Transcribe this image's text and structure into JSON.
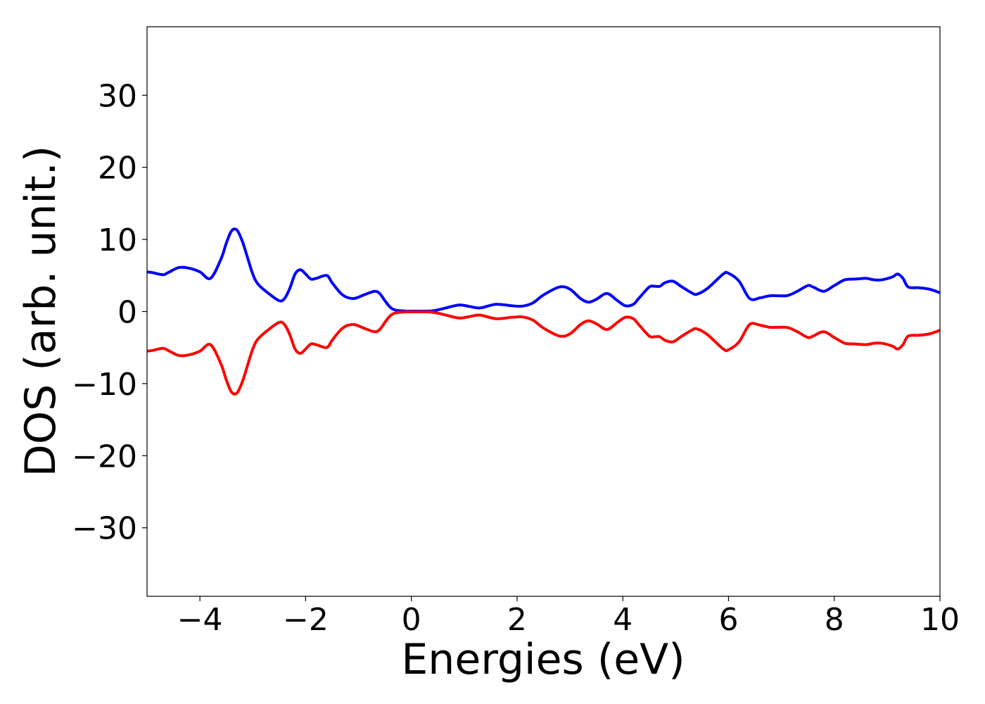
{
  "chart_data": {
    "type": "line",
    "title": "",
    "xlabel": "Energies (eV)",
    "ylabel": "DOS (arb. unit.)",
    "xlim": [
      -5,
      10
    ],
    "ylim": [
      -39.5,
      39.5
    ],
    "grid": false,
    "legend": "none",
    "x_ticks": [
      -4,
      -2,
      0,
      2,
      4,
      6,
      8,
      10
    ],
    "x_tick_labels": [
      "−4",
      "−2",
      "0",
      "2",
      "4",
      "6",
      "8",
      "10"
    ],
    "y_ticks": [
      30,
      20,
      10,
      0,
      -10,
      -20,
      -30
    ],
    "y_tick_labels": [
      "30",
      "20",
      "10",
      "0",
      "−10",
      "−20",
      "−30"
    ],
    "series": [
      {
        "color": "#0000ff",
        "x": [
          -5,
          -4.9,
          -4.7,
          -4.6,
          -4.4,
          -4.2,
          -4.0,
          -3.8,
          -3.6,
          -3.5,
          -3.4,
          -3.3,
          -3.2,
          -3.1,
          -3.0,
          -2.9,
          -2.7,
          -2.5,
          -2.4,
          -2.3,
          -2.2,
          -2.1,
          -2.0,
          -1.9,
          -1.8,
          -1.6,
          -1.5,
          -1.3,
          -1.1,
          -0.9,
          -0.7,
          -0.6,
          -0.5,
          -0.4,
          -0.3,
          -0.1,
          0,
          0.2,
          0.4,
          0.6,
          0.9,
          1.1,
          1.3,
          1.6,
          1.9,
          2.1,
          2.3,
          2.5,
          2.8,
          3.0,
          3.2,
          3.35,
          3.5,
          3.7,
          3.9,
          4.05,
          4.2,
          4.3,
          4.5,
          4.6,
          4.7,
          4.8,
          4.95,
          5.1,
          5.3,
          5.4,
          5.6,
          5.9,
          6.0,
          6.2,
          6.4,
          6.6,
          6.8,
          7.1,
          7.3,
          7.5,
          7.6,
          7.8,
          8.0,
          8.2,
          8.4,
          8.6,
          8.75,
          8.9,
          9.1,
          9.2,
          9.3,
          9.4,
          9.6,
          9.8,
          10
        ],
        "values": [
          5.5,
          5.4,
          5.1,
          5.4,
          6.1,
          6.0,
          5.5,
          4.6,
          7.3,
          9.5,
          11.2,
          11.3,
          9.8,
          7.5,
          5.2,
          3.8,
          2.5,
          1.5,
          1.8,
          3.2,
          5.2,
          5.8,
          5.2,
          4.5,
          4.6,
          5.0,
          4.0,
          2.3,
          1.8,
          2.3,
          2.8,
          2.5,
          1.5,
          0.6,
          0.2,
          0.05,
          0.05,
          0.05,
          0.1,
          0.4,
          0.9,
          0.7,
          0.5,
          1.0,
          0.8,
          0.75,
          1.2,
          2.3,
          3.4,
          3.1,
          1.8,
          1.3,
          1.7,
          2.5,
          1.5,
          0.8,
          1.0,
          1.8,
          3.4,
          3.5,
          3.5,
          4.0,
          4.2,
          3.5,
          2.6,
          2.4,
          3.2,
          5.2,
          5.3,
          4.2,
          1.8,
          1.9,
          2.2,
          2.2,
          2.8,
          3.6,
          3.4,
          2.8,
          3.6,
          4.4,
          4.5,
          4.6,
          4.4,
          4.4,
          4.8,
          5.2,
          4.6,
          3.4,
          3.3,
          3.1,
          2.6
        ]
      },
      {
        "color": "#ff0000",
        "x": [
          -5,
          -4.9,
          -4.7,
          -4.6,
          -4.4,
          -4.2,
          -4.0,
          -3.8,
          -3.6,
          -3.5,
          -3.4,
          -3.3,
          -3.2,
          -3.1,
          -3.0,
          -2.9,
          -2.7,
          -2.5,
          -2.4,
          -2.3,
          -2.2,
          -2.1,
          -2.0,
          -1.9,
          -1.8,
          -1.6,
          -1.5,
          -1.3,
          -1.1,
          -0.9,
          -0.7,
          -0.6,
          -0.5,
          -0.4,
          -0.3,
          -0.1,
          0,
          0.2,
          0.4,
          0.6,
          0.9,
          1.1,
          1.3,
          1.6,
          1.9,
          2.1,
          2.3,
          2.5,
          2.8,
          3.0,
          3.2,
          3.35,
          3.5,
          3.7,
          3.9,
          4.05,
          4.2,
          4.3,
          4.5,
          4.6,
          4.7,
          4.8,
          4.95,
          5.1,
          5.3,
          5.4,
          5.6,
          5.9,
          6.0,
          6.2,
          6.4,
          6.6,
          6.8,
          7.1,
          7.3,
          7.5,
          7.6,
          7.8,
          8.0,
          8.2,
          8.4,
          8.6,
          8.75,
          8.9,
          9.1,
          9.2,
          9.3,
          9.4,
          9.6,
          9.8,
          10
        ],
        "values": [
          -5.5,
          -5.4,
          -5.1,
          -5.4,
          -6.1,
          -6.0,
          -5.5,
          -4.6,
          -7.3,
          -9.5,
          -11.2,
          -11.3,
          -9.8,
          -7.5,
          -5.2,
          -3.8,
          -2.5,
          -1.5,
          -1.8,
          -3.2,
          -5.2,
          -5.8,
          -5.2,
          -4.5,
          -4.6,
          -5.0,
          -4.0,
          -2.3,
          -1.8,
          -2.3,
          -2.8,
          -2.5,
          -1.5,
          -0.6,
          -0.2,
          -0.05,
          -0.05,
          -0.05,
          -0.1,
          -0.4,
          -0.9,
          -0.7,
          -0.5,
          -1.0,
          -0.8,
          -0.75,
          -1.2,
          -2.3,
          -3.4,
          -3.1,
          -1.8,
          -1.3,
          -1.7,
          -2.5,
          -1.5,
          -0.8,
          -1.0,
          -1.8,
          -3.4,
          -3.5,
          -3.5,
          -4.0,
          -4.2,
          -3.5,
          -2.6,
          -2.4,
          -3.2,
          -5.2,
          -5.3,
          -4.2,
          -1.8,
          -1.9,
          -2.2,
          -2.2,
          -2.8,
          -3.6,
          -3.4,
          -2.8,
          -3.6,
          -4.4,
          -4.5,
          -4.6,
          -4.4,
          -4.4,
          -4.8,
          -5.2,
          -4.6,
          -3.4,
          -3.3,
          -3.1,
          -2.6
        ]
      }
    ]
  }
}
